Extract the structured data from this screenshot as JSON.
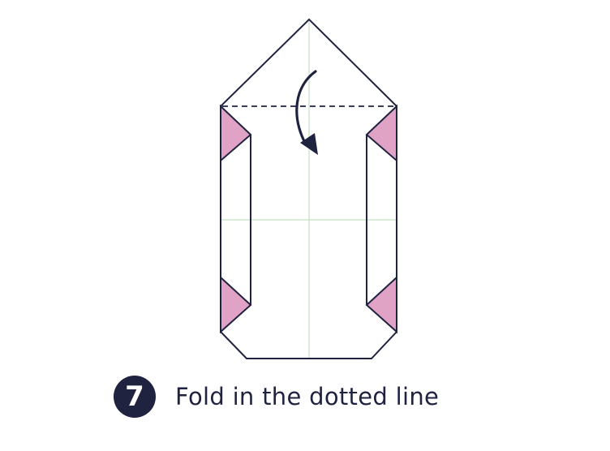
{
  "step": {
    "number": "7",
    "instruction": "Fold in the dotted line"
  },
  "colors": {
    "outline": "#1f2340",
    "flap_fill": "#e0a3c6",
    "crease": "#c5dfc3",
    "badge": "#1f2340"
  },
  "icons": [
    "fold-arrow-icon"
  ]
}
